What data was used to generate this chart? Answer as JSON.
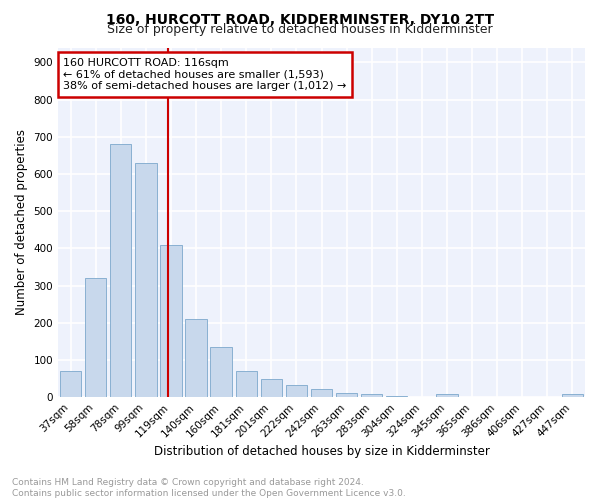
{
  "title": "160, HURCOTT ROAD, KIDDERMINSTER, DY10 2TT",
  "subtitle": "Size of property relative to detached houses in Kidderminster",
  "xlabel": "Distribution of detached houses by size in Kidderminster",
  "ylabel": "Number of detached properties",
  "categories": [
    "37sqm",
    "58sqm",
    "78sqm",
    "99sqm",
    "119sqm",
    "140sqm",
    "160sqm",
    "181sqm",
    "201sqm",
    "222sqm",
    "242sqm",
    "263sqm",
    "283sqm",
    "304sqm",
    "324sqm",
    "345sqm",
    "365sqm",
    "386sqm",
    "406sqm",
    "427sqm",
    "447sqm"
  ],
  "values": [
    70,
    320,
    680,
    630,
    410,
    210,
    135,
    70,
    48,
    33,
    22,
    12,
    8,
    2,
    0,
    8,
    0,
    0,
    0,
    0,
    8
  ],
  "bar_color": "#c8d8ec",
  "bar_edge_color": "#7ca8cc",
  "background_color": "#eef2fc",
  "grid_color": "#ffffff",
  "property_line_color": "#cc0000",
  "annotation_line1": "160 HURCOTT ROAD: 116sqm",
  "annotation_line2": "← 61% of detached houses are smaller (1,593)",
  "annotation_line3": "38% of semi-detached houses are larger (1,012) →",
  "annotation_box_color": "#cc0000",
  "ylim": [
    0,
    940
  ],
  "yticks": [
    0,
    100,
    200,
    300,
    400,
    500,
    600,
    700,
    800,
    900
  ],
  "footer": "Contains HM Land Registry data © Crown copyright and database right 2024.\nContains public sector information licensed under the Open Government Licence v3.0.",
  "title_fontsize": 10,
  "subtitle_fontsize": 9,
  "axis_label_fontsize": 8.5,
  "tick_fontsize": 7.5,
  "annotation_fontsize": 8,
  "footer_fontsize": 6.5
}
